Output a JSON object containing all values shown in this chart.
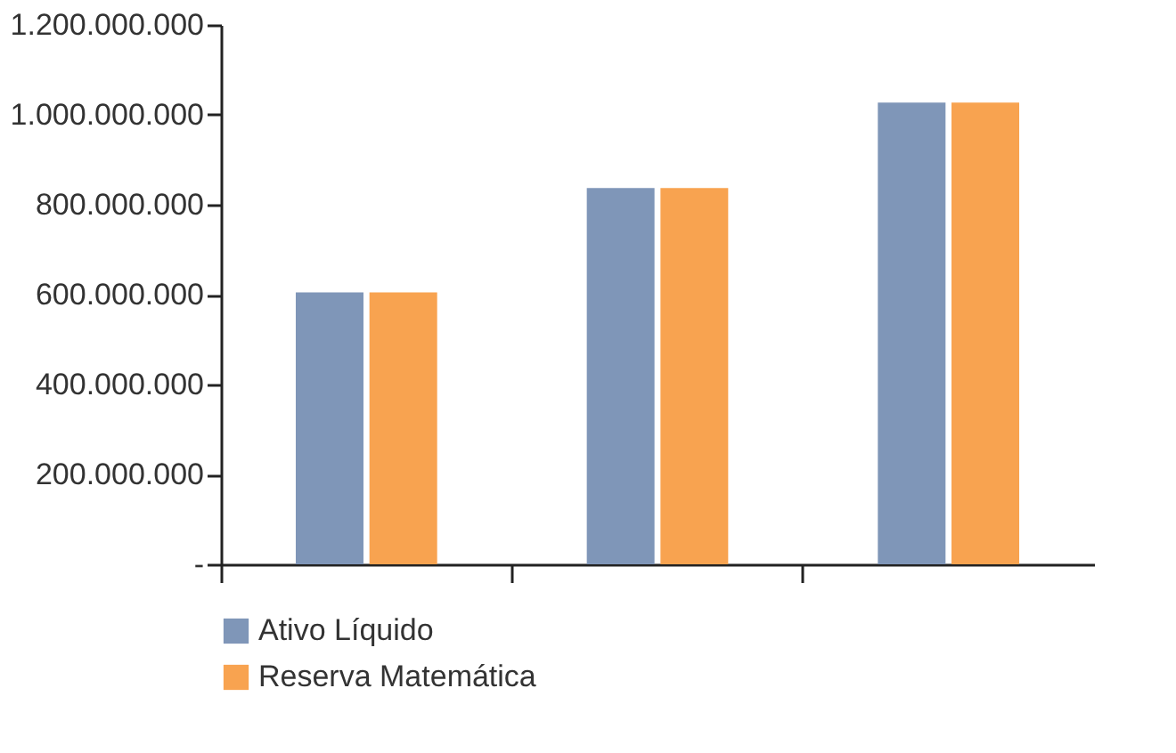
{
  "chart_data": {
    "type": "bar",
    "categories": [
      null,
      null,
      null
    ],
    "series": [
      {
        "name": "Ativo Líquido",
        "color": "#7f96b8",
        "values": [
          605000000,
          837000000,
          1027000000
        ]
      },
      {
        "name": "Reserva Matemática",
        "color": "#f8a350",
        "values": [
          605000000,
          837000000,
          1027000000
        ]
      }
    ],
    "ylim": [
      0,
      1200000000
    ],
    "yticks": [
      {
        "value": 0,
        "label": "-"
      },
      {
        "value": 200000000,
        "label": "200.000.000"
      },
      {
        "value": 400000000,
        "label": "400.000.000"
      },
      {
        "value": 600000000,
        "label": "600.000.000"
      },
      {
        "value": 800000000,
        "label": "800.000.000"
      },
      {
        "value": 1000000000,
        "label": "1.000.000.000"
      },
      {
        "value": 1200000000,
        "label": "1.200.000.000"
      }
    ],
    "grid": false,
    "legend": "bottom",
    "tick_labels": "y"
  }
}
